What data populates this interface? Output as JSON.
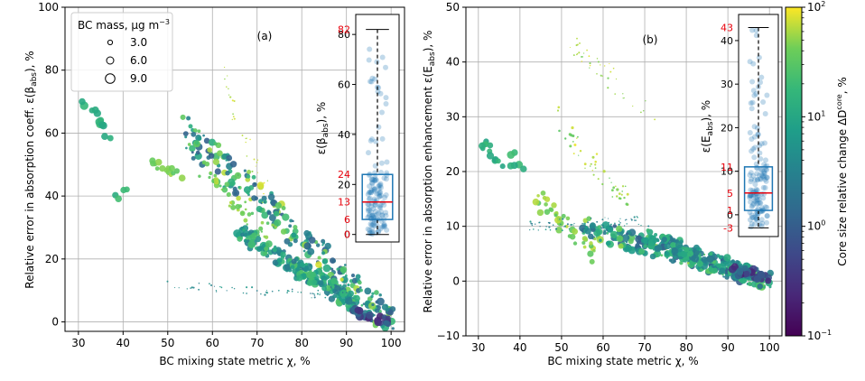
{
  "figure": {
    "colorbar": {
      "label": "Core size relative change ΔD",
      "label_sup": "core",
      "label_suffix": ", %",
      "ticks": [
        {
          "base": "10",
          "exp": "2",
          "value": 100
        },
        {
          "base": "10",
          "exp": "1",
          "value": 10
        },
        {
          "base": "10",
          "exp": "0",
          "value": 1
        },
        {
          "base": "10",
          "exp": "−1",
          "value": 0.1
        }
      ],
      "scale": "log",
      "range": [
        0.1,
        100
      ],
      "colormap": "viridis"
    },
    "legend": {
      "title": "BC mass, μg m",
      "title_sup": "−3",
      "entries": [
        {
          "label": "3.0",
          "size": 3.0
        },
        {
          "label": "6.0",
          "size": 6.0
        },
        {
          "label": "9.0",
          "size": 9.0
        }
      ]
    }
  },
  "chart_data": [
    {
      "type": "scatter",
      "panel_label": "(a)",
      "xlabel": "BC mixing state metric χ, %",
      "ylabel": "Relative error in absorption coeff. ε(β",
      "ylabel_sub": "abs",
      "ylabel_suffix": "), %",
      "xlim": [
        27,
        103
      ],
      "ylim": [
        -3,
        100
      ],
      "xticks": [
        "30",
        "40",
        "50",
        "60",
        "70",
        "80",
        "90",
        "100"
      ],
      "yticks": [
        "0",
        "20",
        "40",
        "60",
        "80",
        "100"
      ],
      "grid": true,
      "clusters": [
        {
          "x0": 30,
          "y0": 70.5,
          "x1": 38,
          "y1": 58,
          "n": 12,
          "cmin": 8,
          "cmax": 20,
          "smin": 6,
          "smax": 9
        },
        {
          "x0": 38,
          "y0": 38,
          "x1": 42,
          "y1": 45,
          "n": 4,
          "cmin": 12,
          "cmax": 25,
          "smin": 6,
          "smax": 8
        },
        {
          "x0": 44,
          "y0": 52,
          "x1": 55,
          "y1": 45,
          "n": 14,
          "cmin": 30,
          "cmax": 60,
          "smin": 4,
          "smax": 7
        },
        {
          "x0": 54,
          "y0": 60,
          "x1": 100,
          "y1": 0,
          "n": 260,
          "cmin": 1,
          "cmax": 80,
          "smin": 2,
          "smax": 8
        },
        {
          "x0": 58,
          "y0": 48,
          "x1": 72,
          "y1": 28,
          "n": 40,
          "cmin": 25,
          "cmax": 70,
          "smin": 2,
          "smax": 6
        },
        {
          "x0": 62,
          "y0": 80,
          "x1": 72,
          "y1": 40,
          "n": 30,
          "cmin": 50,
          "cmax": 90,
          "smin": 1,
          "smax": 2
        },
        {
          "x0": 66,
          "y0": 28,
          "x1": 92,
          "y1": 6,
          "n": 180,
          "cmin": 2,
          "cmax": 30,
          "smin": 3,
          "smax": 8
        },
        {
          "x0": 50,
          "y0": 12,
          "x1": 92,
          "y1": 8,
          "n": 60,
          "cmin": 2,
          "cmax": 8,
          "smin": 1,
          "smax": 2
        },
        {
          "x0": 90,
          "y0": 4,
          "x1": 100,
          "y1": 0,
          "n": 30,
          "cmin": 0.2,
          "cmax": 2,
          "smin": 5,
          "smax": 8
        }
      ],
      "inset": {
        "type": "boxplot",
        "ylabel": "ε(β",
        "ylabel_sub": "abs",
        "ylabel_suffix": "), %",
        "yticks": [
          "0",
          "20",
          "40",
          "60",
          "80"
        ],
        "ylim": [
          -3,
          88
        ],
        "whisker_low": 0,
        "q1": 6,
        "median": 13,
        "q3": 24,
        "whisker_high": 82,
        "annotations": [
          "82",
          "24",
          "13",
          "6",
          "0"
        ]
      }
    },
    {
      "type": "scatter",
      "panel_label": "(b)",
      "xlabel": "BC mixing state metric χ, %",
      "ylabel": "Relative error in absorption enhancement ε(E",
      "ylabel_sub": "abs",
      "ylabel_suffix": "), %",
      "xlim": [
        27,
        103
      ],
      "ylim": [
        -10,
        50
      ],
      "xticks": [
        "30",
        "40",
        "50",
        "60",
        "70",
        "80",
        "90",
        "100"
      ],
      "yticks": [
        "−10",
        "0",
        "10",
        "20",
        "30",
        "40",
        "50"
      ],
      "grid": true,
      "clusters": [
        {
          "x0": 30,
          "y0": 26,
          "x1": 36,
          "y1": 22,
          "n": 12,
          "cmin": 8,
          "cmax": 20,
          "smin": 5,
          "smax": 8
        },
        {
          "x0": 37,
          "y0": 24,
          "x1": 41,
          "y1": 19,
          "n": 6,
          "cmin": 10,
          "cmax": 25,
          "smin": 6,
          "smax": 8
        },
        {
          "x0": 44,
          "y0": 15,
          "x1": 58,
          "y1": 5,
          "n": 40,
          "cmin": 30,
          "cmax": 70,
          "smin": 3,
          "smax": 7
        },
        {
          "x0": 48,
          "y0": 30,
          "x1": 66,
          "y1": 14,
          "n": 50,
          "cmin": 30,
          "cmax": 90,
          "smin": 1,
          "smax": 3
        },
        {
          "x0": 52,
          "y0": 44,
          "x1": 72,
          "y1": 30,
          "n": 40,
          "cmin": 40,
          "cmax": 90,
          "smin": 1,
          "smax": 2
        },
        {
          "x0": 55,
          "y0": 10,
          "x1": 100,
          "y1": 0,
          "n": 260,
          "cmin": 1,
          "cmax": 60,
          "smin": 2,
          "smax": 8
        },
        {
          "x0": 42,
          "y0": 10,
          "x1": 70,
          "y1": 11,
          "n": 70,
          "cmin": 2,
          "cmax": 8,
          "smin": 1,
          "smax": 2
        },
        {
          "x0": 70,
          "y0": 8,
          "x1": 96,
          "y1": 1,
          "n": 150,
          "cmin": 2,
          "cmax": 20,
          "smin": 3,
          "smax": 8
        },
        {
          "x0": 92,
          "y0": 2,
          "x1": 100,
          "y1": 0,
          "n": 25,
          "cmin": 0.2,
          "cmax": 2,
          "smin": 5,
          "smax": 8
        }
      ],
      "inset": {
        "type": "boxplot",
        "ylabel": "ε(E",
        "ylabel_sub": "abs",
        "ylabel_suffix": "), %",
        "yticks": [
          "0",
          "10",
          "20",
          "30",
          "40"
        ],
        "ylim": [
          -5,
          46
        ],
        "whisker_low": -3,
        "q1": 1,
        "median": 5,
        "q3": 11,
        "whisker_high": 43,
        "annotations": [
          "43",
          "11",
          "5",
          "1",
          "-3"
        ]
      }
    }
  ]
}
